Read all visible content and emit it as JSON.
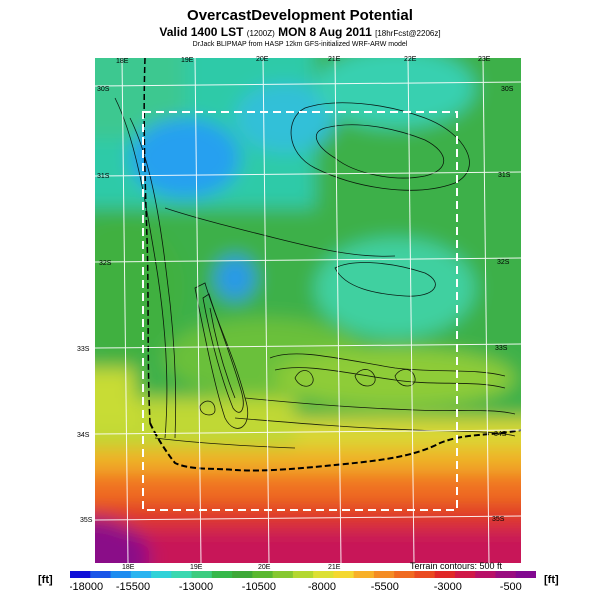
{
  "title": "OvercastDevelopment Potential",
  "subtitle": {
    "main": "Valid 1400 LST",
    "utc": "(1200Z)",
    "date": "MON 8 Aug 2011",
    "forecast": "[18hrFcst@2206z]"
  },
  "credit": "DrJack BLIPMAP from HASP 12km GFS-initialized WRF-ARW model",
  "terrain_note": "Terrain contours: 500 ft",
  "units": "[ft]",
  "top_lon_labels": [
    "18E",
    "19E",
    "20E",
    "21E",
    "22E",
    "23E"
  ],
  "bottom_lon_labels": [
    "18E",
    "19E",
    "20E",
    "21E"
  ],
  "left_lat_labels": [
    "30S",
    "31S",
    "32S",
    "33S",
    "34S",
    "35S"
  ],
  "right_lat_labels": [
    "30S",
    "31S",
    "32S",
    "33S",
    "34S",
    "35S"
  ],
  "colorbar": {
    "tick_labels": [
      "-18000",
      "-15500",
      "-13000",
      "-10500",
      "-8000",
      "-5500",
      "-3000",
      "-500"
    ],
    "min": -18000,
    "max": 500,
    "colors": [
      "#1010d8",
      "#1a55e8",
      "#1e8cf0",
      "#2ab4f0",
      "#30d2d8",
      "#3ad8b0",
      "#3ccc80",
      "#36b84a",
      "#3ea838",
      "#5ab830",
      "#86c830",
      "#b4d830",
      "#dce034",
      "#f4d830",
      "#f8b028",
      "#f48c24",
      "#f06a20",
      "#ea4a20",
      "#e02828",
      "#d01848",
      "#b81068",
      "#9a0c80",
      "#820890"
    ]
  }
}
